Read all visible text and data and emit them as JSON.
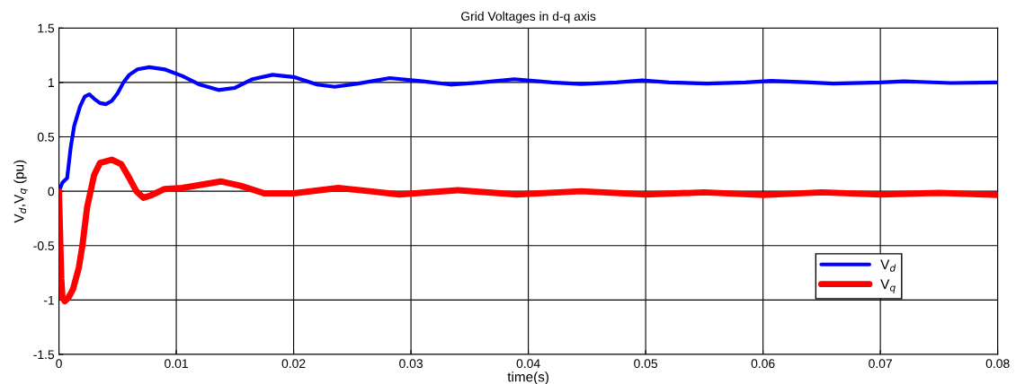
{
  "chart_data": {
    "type": "line",
    "title": "Grid Voltages in d-q axis",
    "xlabel": "time(s)",
    "ylabel": "V$_{d}$,V$_{q}$ (pu)",
    "xlim": [
      0,
      0.08
    ],
    "xticks": [
      0,
      0.01,
      0.02,
      0.03,
      0.04,
      0.05,
      0.06,
      0.07,
      0.08
    ],
    "ylim": [
      -1.5,
      1.5
    ],
    "yticks": [
      -1.5,
      -1,
      -0.5,
      0,
      0.5,
      1,
      1.5
    ],
    "grid": true,
    "legend": "bottom right",
    "line_style": "solid",
    "series": [
      {
        "name": "V$_{d}$",
        "color": "#0000ff",
        "x": [
          0,
          0.0003,
          0.0005,
          0.0007,
          0.001,
          0.0013,
          0.0018,
          0.0022,
          0.0026,
          0.003,
          0.0035,
          0.004,
          0.0045,
          0.005,
          0.0055,
          0.006,
          0.0067,
          0.0077,
          0.009,
          0.0105,
          0.012,
          0.0136,
          0.015,
          0.0165,
          0.0182,
          0.02,
          0.022,
          0.0235,
          0.0255,
          0.0282,
          0.031,
          0.0334,
          0.036,
          0.0388,
          0.042,
          0.0445,
          0.0475,
          0.0497,
          0.052,
          0.0552,
          0.0585,
          0.0607,
          0.064,
          0.066,
          0.07,
          0.072,
          0.076,
          0.08
        ],
        "values": [
          0,
          0.08,
          0.1,
          0.12,
          0.4,
          0.6,
          0.78,
          0.87,
          0.89,
          0.85,
          0.81,
          0.8,
          0.83,
          0.9,
          1.0,
          1.07,
          1.12,
          1.14,
          1.12,
          1.06,
          0.98,
          0.93,
          0.95,
          1.03,
          1.07,
          1.05,
          0.98,
          0.96,
          0.99,
          1.04,
          1.01,
          0.98,
          1.0,
          1.03,
          1.0,
          0.985,
          1.0,
          1.02,
          1.0,
          0.99,
          1.0,
          1.015,
          1.0,
          0.99,
          1.0,
          1.01,
          0.995,
          1.0
        ]
      },
      {
        "name": "V$_{q}$",
        "color": "#ff0000",
        "x": [
          0,
          0.0002,
          0.0003,
          0.0005,
          0.0008,
          0.0012,
          0.0017,
          0.002,
          0.0024,
          0.0027,
          0.003,
          0.0035,
          0.0045,
          0.0053,
          0.006,
          0.0066,
          0.0072,
          0.0078,
          0.009,
          0.0105,
          0.0138,
          0.0155,
          0.0175,
          0.02,
          0.0238,
          0.0265,
          0.029,
          0.034,
          0.039,
          0.0445,
          0.05,
          0.055,
          0.06,
          0.065,
          0.07,
          0.075,
          0.08
        ],
        "values": [
          0,
          -0.8,
          -0.98,
          -1.01,
          -0.98,
          -0.9,
          -0.7,
          -0.5,
          -0.15,
          0.0,
          0.15,
          0.26,
          0.29,
          0.25,
          0.12,
          0.0,
          -0.06,
          -0.04,
          0.02,
          0.03,
          0.09,
          0.05,
          -0.02,
          -0.02,
          0.03,
          0.0,
          -0.03,
          0.01,
          -0.03,
          0.0,
          -0.03,
          -0.01,
          -0.035,
          -0.01,
          -0.03,
          -0.015,
          -0.035
        ]
      }
    ]
  }
}
